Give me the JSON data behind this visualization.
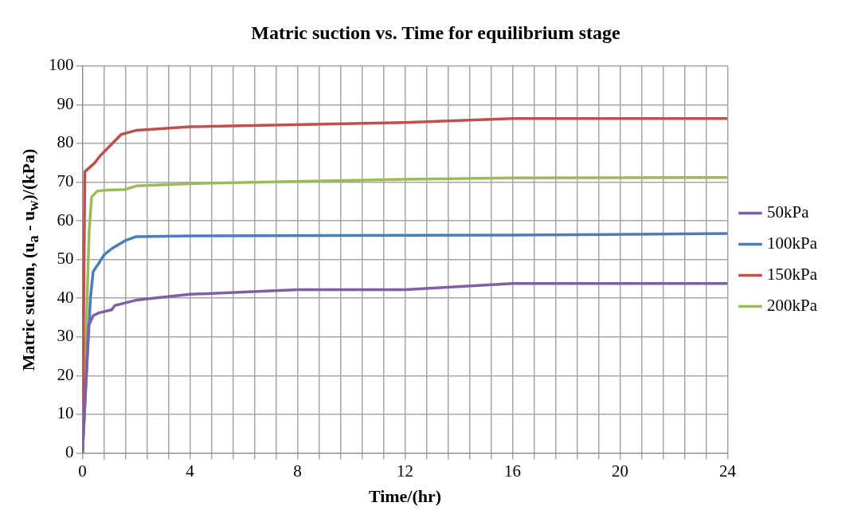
{
  "chart_data": {
    "type": "line",
    "title": "Matric suction vs. Time for equilibrium stage",
    "xlabel": "Time/(hr)",
    "ylabel": "Matric sucion, (u$_{a}$ - u$_{w}$)/(kPa)",
    "xlim": [
      0,
      24
    ],
    "ylim": [
      0,
      100
    ],
    "xticks": [
      0,
      {
        "value": 0.8,
        "label": null
      },
      {
        "value": 1.6,
        "label": null
      },
      {
        "value": 2.4,
        "label": null
      },
      {
        "value": 3.2,
        "label": null
      },
      4,
      {
        "value": 4.8,
        "label": null
      },
      {
        "value": 5.6,
        "label": null
      },
      {
        "value": 6.4,
        "label": null
      },
      {
        "value": 7.2,
        "label": null
      },
      8,
      {
        "value": 8.8,
        "label": null
      },
      {
        "value": 9.6,
        "label": null
      },
      {
        "value": 10.4,
        "label": null
      },
      {
        "value": 11.2,
        "label": null
      },
      12,
      {
        "value": 12.8,
        "label": null
      },
      {
        "value": 13.6,
        "label": null
      },
      {
        "value": 14.4,
        "label": null
      },
      {
        "value": 15.2,
        "label": null
      },
      16,
      {
        "value": 16.8,
        "label": null
      },
      {
        "value": 17.6,
        "label": null
      },
      {
        "value": 18.4,
        "label": null
      },
      {
        "value": 19.2,
        "label": null
      },
      20,
      {
        "value": 20.8,
        "label": null
      },
      {
        "value": 21.6,
        "label": null
      },
      {
        "value": 22.4,
        "label": null
      },
      {
        "value": 23.2,
        "label": null
      },
      24
    ],
    "yticks": [
      0,
      10,
      20,
      30,
      40,
      50,
      60,
      70,
      80,
      90,
      100
    ],
    "grid": true,
    "legend": "right",
    "marker": "none",
    "line_style": "solid",
    "series": [
      {
        "name": "50kPa",
        "color": "#7f5fa8",
        "x": [
          0,
          0.23,
          0.4,
          0.61,
          1.09,
          1.2,
          2.0,
          4.0,
          8.0,
          12.0,
          16.0,
          24.0
        ],
        "values": [
          0,
          32.9,
          35.5,
          36.2,
          37.0,
          38.1,
          39.5,
          41.0,
          42.2,
          42.2,
          43.8,
          43.8
        ]
      },
      {
        "name": "100kPa",
        "color": "#4a7ebb",
        "x": [
          0,
          0.3,
          0.4,
          0.55,
          0.82,
          1.09,
          1.63,
          2.0,
          4.0,
          16.0,
          24.0
        ],
        "values": [
          0,
          40.3,
          46.9,
          48.4,
          51.3,
          52.8,
          55.0,
          55.9,
          56.1,
          56.3,
          56.7
        ]
      },
      {
        "name": "150kPa",
        "color": "#c0504d",
        "x": [
          0,
          0.09,
          0.45,
          0.66,
          1.44,
          2.02,
          4.02,
          12.0,
          16.0,
          24.0
        ],
        "values": [
          0,
          72.7,
          74.9,
          76.8,
          82.3,
          83.4,
          84.3,
          85.4,
          86.4,
          86.4
        ]
      },
      {
        "name": "200kPa",
        "color": "#9bbb59",
        "x": [
          0,
          0.25,
          0.34,
          0.55,
          0.82,
          1.6,
          2.0,
          4.0,
          12.0,
          16.0,
          24.0
        ],
        "values": [
          0,
          57.2,
          66.1,
          67.7,
          67.9,
          68.1,
          69.0,
          69.6,
          70.7,
          71.1,
          71.2
        ]
      }
    ]
  }
}
